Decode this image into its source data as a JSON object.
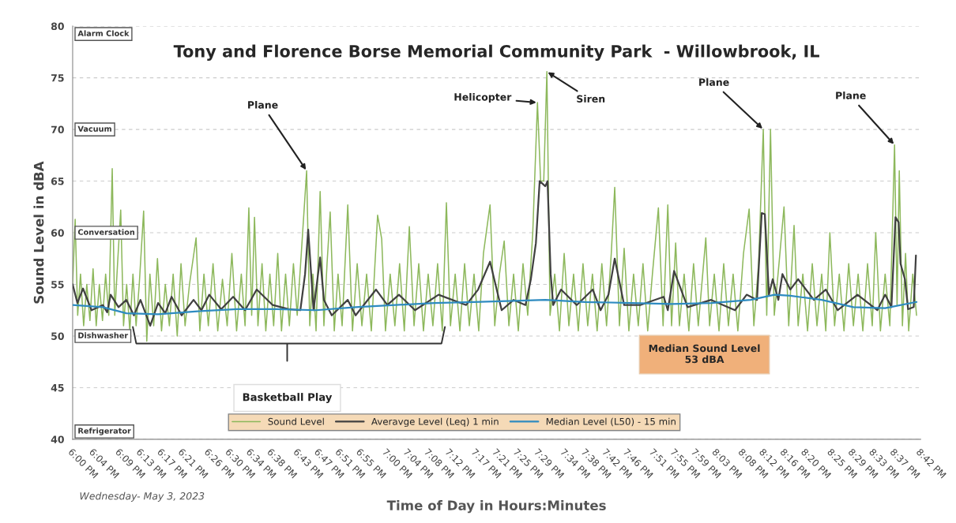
{
  "chart_data": {
    "type": "line",
    "title": "Tony and Florence Borse Memorial Community Park  - Willowbrook, IL",
    "xlabel": "Time of Day in Hours:Minutes",
    "ylabel": "Sound Level in dBA",
    "xlim": [
      18.0,
      20.7
    ],
    "ylim": [
      40,
      80
    ],
    "yticks": [
      40,
      45,
      50,
      55,
      60,
      65,
      70,
      75,
      80
    ],
    "xticks": [
      {
        "value": 18.0,
        "label": "6:00 PM"
      },
      {
        "value": 18.0667,
        "label": "6:04 PM"
      },
      {
        "value": 18.15,
        "label": "6:09 PM"
      },
      {
        "value": 18.2167,
        "label": "6:13 PM"
      },
      {
        "value": 18.2833,
        "label": "6:17 PM"
      },
      {
        "value": 18.35,
        "label": "6:21 PM"
      },
      {
        "value": 18.4333,
        "label": "6:26 PM"
      },
      {
        "value": 18.5,
        "label": "6:30 PM"
      },
      {
        "value": 18.5667,
        "label": "6:34 PM"
      },
      {
        "value": 18.6333,
        "label": "6:38 PM"
      },
      {
        "value": 18.7167,
        "label": "6:43 PM"
      },
      {
        "value": 18.7833,
        "label": "6:47 PM"
      },
      {
        "value": 18.85,
        "label": "6:51 PM"
      },
      {
        "value": 18.9167,
        "label": "6:55 PM"
      },
      {
        "value": 19.0,
        "label": "7:00 PM"
      },
      {
        "value": 19.0667,
        "label": "7:04 PM"
      },
      {
        "value": 19.1333,
        "label": "7:08 PM"
      },
      {
        "value": 19.2,
        "label": "7:12 PM"
      },
      {
        "value": 19.2833,
        "label": "7:17 PM"
      },
      {
        "value": 19.35,
        "label": "7:21 PM"
      },
      {
        "value": 19.4167,
        "label": "7:25 PM"
      },
      {
        "value": 19.4833,
        "label": "7:29 PM"
      },
      {
        "value": 19.5667,
        "label": "7:34 PM"
      },
      {
        "value": 19.6333,
        "label": "7:38 PM"
      },
      {
        "value": 19.7,
        "label": "7:42 PM"
      },
      {
        "value": 19.7667,
        "label": "7:46 PM"
      },
      {
        "value": 19.85,
        "label": "7:51 PM"
      },
      {
        "value": 19.9167,
        "label": "7:55 PM"
      },
      {
        "value": 19.9833,
        "label": "7:59 PM"
      },
      {
        "value": 20.05,
        "label": "8:03 PM"
      },
      {
        "value": 20.1333,
        "label": "8:08 PM"
      },
      {
        "value": 20.2,
        "label": "8:12 PM"
      },
      {
        "value": 20.2667,
        "label": "8:16 PM"
      },
      {
        "value": 20.3333,
        "label": "8:20 PM"
      },
      {
        "value": 20.4167,
        "label": "8:25 PM"
      },
      {
        "value": 20.4833,
        "label": "8:29 PM"
      },
      {
        "value": 20.55,
        "label": "8:33 PM"
      },
      {
        "value": 20.6167,
        "label": "8:37 PM"
      },
      {
        "value": 20.7,
        "label": "8:42 PM"
      }
    ],
    "grid": "y",
    "legend": "bottom",
    "series": [
      {
        "name": "Sound Level",
        "color": "#8db85c",
        "x": [
          18.0,
          18.008,
          18.016,
          18.025,
          18.035,
          18.045,
          18.055,
          18.065,
          18.075,
          18.085,
          18.095,
          18.105,
          18.115,
          18.126,
          18.134,
          18.143,
          18.153,
          18.162,
          18.172,
          18.182,
          18.192,
          18.202,
          18.212,
          18.226,
          18.236,
          18.246,
          18.258,
          18.27,
          18.283,
          18.295,
          18.308,
          18.32,
          18.333,
          18.345,
          18.358,
          18.372,
          18.393,
          18.405,
          18.418,
          18.432,
          18.447,
          18.462,
          18.477,
          18.492,
          18.507,
          18.522,
          18.537,
          18.549,
          18.561,
          18.57,
          18.579,
          18.59,
          18.603,
          18.615,
          18.628,
          18.64,
          18.653,
          18.665,
          18.678,
          18.69,
          18.703,
          18.715,
          18.728,
          18.745,
          18.755,
          18.765,
          18.775,
          18.788,
          18.8,
          18.81,
          18.82,
          18.833,
          18.845,
          18.858,
          18.876,
          18.891,
          18.906,
          18.921,
          18.936,
          18.951,
          18.971,
          18.984,
          18.996,
          19.011,
          19.026,
          19.041,
          19.056,
          19.072,
          19.087,
          19.102,
          19.117,
          19.132,
          19.147,
          19.162,
          19.177,
          19.19,
          19.203,
          19.218,
          19.233,
          19.248,
          19.263,
          19.278,
          19.293,
          19.308,
          19.329,
          19.344,
          19.359,
          19.374,
          19.389,
          19.404,
          19.419,
          19.434,
          19.449,
          19.465,
          19.48,
          19.49,
          19.5,
          19.51,
          19.52,
          19.535,
          19.55,
          19.565,
          19.58,
          19.595,
          19.61,
          19.625,
          19.64,
          19.655,
          19.67,
          19.685,
          19.7,
          19.715,
          19.726,
          19.741,
          19.756,
          19.771,
          19.786,
          19.801,
          19.816,
          19.831,
          19.846,
          19.865,
          19.88,
          19.895,
          19.907,
          19.92,
          19.932,
          19.947,
          19.962,
          19.977,
          19.992,
          20.016,
          20.028,
          20.043,
          20.058,
          20.073,
          20.088,
          20.103,
          20.118,
          20.136,
          20.154,
          20.169,
          20.184,
          20.199,
          20.21,
          20.222,
          20.234,
          20.249,
          20.265,
          20.28,
          20.297,
          20.31,
          20.325,
          20.34,
          20.355,
          20.37,
          20.385,
          20.398,
          20.411,
          20.426,
          20.441,
          20.456,
          20.471,
          20.486,
          20.501,
          20.516,
          20.531,
          20.546,
          20.557,
          20.572,
          20.587,
          20.602,
          20.617,
          20.625,
          20.632,
          20.642,
          20.652,
          20.662,
          20.675,
          20.687
        ],
        "values": [
          55,
          61.3,
          52,
          56,
          51,
          55,
          51.5,
          56.5,
          51,
          55,
          51.5,
          56,
          52,
          66.2,
          52,
          57,
          62.2,
          51,
          55,
          50.5,
          56,
          51,
          55,
          62.1,
          49.5,
          56,
          51,
          57.5,
          50.5,
          55,
          51,
          56,
          50,
          57,
          51,
          55,
          59.5,
          50.5,
          56,
          51,
          57,
          50.5,
          55.5,
          51,
          58,
          50.5,
          56,
          51,
          62.4,
          52,
          61.5,
          51,
          57,
          50.5,
          56,
          51,
          58,
          50.5,
          56,
          51,
          57,
          52,
          58,
          66,
          51,
          56,
          50.5,
          64,
          51,
          57,
          62,
          50.5,
          56,
          51,
          62.7,
          50.5,
          57,
          51,
          56,
          50.5,
          61.7,
          59.4,
          50.5,
          56,
          51,
          57,
          50.5,
          60.6,
          51,
          57,
          50.5,
          56,
          51,
          57,
          50.5,
          62.9,
          51,
          56,
          50.5,
          57,
          51,
          56,
          50.5,
          58,
          62.7,
          51,
          56,
          59.2,
          51,
          56,
          50.5,
          57,
          52,
          60,
          72.6,
          65,
          65,
          75.6,
          52,
          56,
          50.5,
          58,
          51,
          56,
          50.5,
          57,
          51,
          56,
          50.5,
          57,
          51,
          58,
          64.4,
          51,
          58.5,
          50.5,
          56,
          51,
          57,
          50.5,
          56,
          62.4,
          51,
          62.7,
          51,
          59,
          51,
          56,
          50.5,
          57,
          51,
          59.5,
          51,
          56,
          50.5,
          57,
          51,
          56,
          50.5,
          58,
          62.3,
          51,
          57,
          70,
          52,
          70,
          52,
          57,
          62.5,
          51,
          60.7,
          51,
          56,
          50.5,
          57,
          51,
          56,
          50.5,
          60,
          51,
          56,
          50.5,
          57,
          51,
          56,
          50.5,
          57,
          51,
          60,
          50.5,
          56,
          51,
          68.5,
          53,
          66,
          51,
          58,
          50.5,
          56,
          52
        ]
      },
      {
        "name": "Averavge Level (Leq) 1 min",
        "color": "#404040",
        "x": [
          18.0,
          18.015,
          18.033,
          18.06,
          18.096,
          18.11,
          18.121,
          18.146,
          18.171,
          18.195,
          18.216,
          18.247,
          18.272,
          18.295,
          18.315,
          18.347,
          18.385,
          18.41,
          18.435,
          18.473,
          18.511,
          18.549,
          18.586,
          18.637,
          18.687,
          18.725,
          18.74,
          18.75,
          18.767,
          18.788,
          18.8,
          18.825,
          18.876,
          18.901,
          18.966,
          19.002,
          19.039,
          19.09,
          19.165,
          19.253,
          19.291,
          19.329,
          19.366,
          19.404,
          19.442,
          19.459,
          19.475,
          19.487,
          19.505,
          19.512,
          19.522,
          19.53,
          19.555,
          19.605,
          19.656,
          19.681,
          19.706,
          19.726,
          19.756,
          19.807,
          19.882,
          19.895,
          19.915,
          19.958,
          20.033,
          20.109,
          20.146,
          20.179,
          20.194,
          20.204,
          20.217,
          20.229,
          20.247,
          20.26,
          20.285,
          20.31,
          20.36,
          20.398,
          20.436,
          20.499,
          20.562,
          20.587,
          20.607,
          20.62,
          20.63,
          20.636,
          20.65,
          20.66,
          20.678,
          20.685
        ],
        "values": [
          55,
          53.2,
          54.6,
          52.5,
          53,
          52.3,
          54,
          52.8,
          53.5,
          52,
          53.5,
          51,
          53.2,
          52.2,
          53.8,
          52,
          53.5,
          52.5,
          54,
          52.6,
          53.8,
          52.5,
          54.5,
          53,
          52.6,
          52.5,
          56,
          60.3,
          52.5,
          57.6,
          53.5,
          52,
          53.5,
          52,
          54.5,
          53,
          54,
          52.5,
          54,
          53,
          54.5,
          57.2,
          52.5,
          53.5,
          53,
          55.5,
          59,
          65,
          64.5,
          65,
          56,
          53,
          54.5,
          53,
          54.5,
          52.5,
          54,
          57.5,
          53,
          53,
          53.8,
          52.5,
          56.3,
          52.8,
          53.5,
          52.5,
          54,
          53.5,
          61.9,
          61.8,
          54,
          55.5,
          53.5,
          56,
          54.5,
          55.5,
          53.5,
          54.5,
          52.5,
          54,
          52.5,
          54,
          52.8,
          61.5,
          61,
          57,
          55.5,
          52.6,
          52.8,
          57.8
        ]
      },
      {
        "name": "Median Level (L50) - 15 min",
        "color": "#2e8bc0",
        "x": [
          18.0,
          18.096,
          18.171,
          18.272,
          18.398,
          18.523,
          18.649,
          18.775,
          18.901,
          19.027,
          19.152,
          19.278,
          19.404,
          19.505,
          19.631,
          19.782,
          19.907,
          20.033,
          20.159,
          20.235,
          20.285,
          20.385,
          20.486,
          20.587,
          20.687
        ],
        "values": [
          53,
          52.8,
          52.2,
          52.1,
          52.4,
          52.6,
          52.6,
          52.5,
          52.8,
          53,
          53.2,
          53.3,
          53.4,
          53.5,
          53.3,
          53.2,
          53.1,
          53.2,
          53.5,
          54,
          53.9,
          53.5,
          52.8,
          52.7,
          53.3
        ]
      }
    ],
    "annotations": [
      "Alarm Clock",
      "Vacuum",
      "Conversation",
      "Dishwasher",
      "Refrigerator",
      {
        "text": "Plane",
        "x": 18.745,
        "y": 66
      },
      {
        "text": "Helicopter",
        "x": 19.48,
        "y": 72.6
      },
      {
        "text": "Siren",
        "x": 19.51,
        "y": 75.6
      },
      {
        "text": "Plane",
        "x": 20.199,
        "y": 70
      },
      {
        "text": "Plane",
        "x": 20.617,
        "y": 68.5
      },
      "Basketball Play",
      "Median Sound Level\n53 dBA",
      "Wednesday- May 3, 2023"
    ]
  }
}
